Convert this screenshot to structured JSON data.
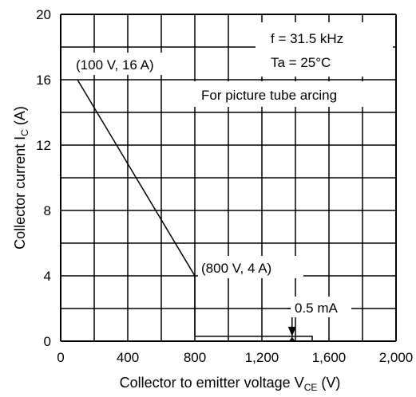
{
  "chart_data": {
    "type": "line",
    "xlabel": "Collector to emitter voltage",
    "xsym": "V",
    "xsub": "CE",
    "xunit": "(V)",
    "ylabel": "Collector current",
    "ysym": "I",
    "ysub": "C",
    "yunit": "(A)",
    "xlim": [
      0,
      2000
    ],
    "ylim": [
      0,
      20
    ],
    "grid": true,
    "x_tick_labels": [
      "0",
      "400",
      "800",
      "1,200",
      "1,600",
      "2,000"
    ],
    "x_tick_values": [
      0,
      400,
      800,
      1200,
      1600,
      2000
    ],
    "y_tick_labels": [
      "0",
      "4",
      "8",
      "12",
      "16",
      "20"
    ],
    "y_tick_values": [
      0,
      4,
      8,
      12,
      16,
      20
    ],
    "series": [
      {
        "x": [
          100,
          800,
          800,
          1500,
          1500
        ],
        "y": [
          16,
          4,
          0.3,
          0.3,
          0
        ]
      }
    ],
    "annotations": {
      "point1": {
        "text": "(100 V, 16 A)",
        "x": 100,
        "y": 16
      },
      "point2": {
        "text": "(800 V, 4 A)",
        "x": 800,
        "y": 4
      },
      "current": {
        "text": "0.5 mA",
        "x": 1380,
        "y": 0.3
      }
    },
    "conditions": [
      "f = 31.5 kHz",
      "Ta = 25°C"
    ],
    "note": "For picture tube arcing"
  }
}
